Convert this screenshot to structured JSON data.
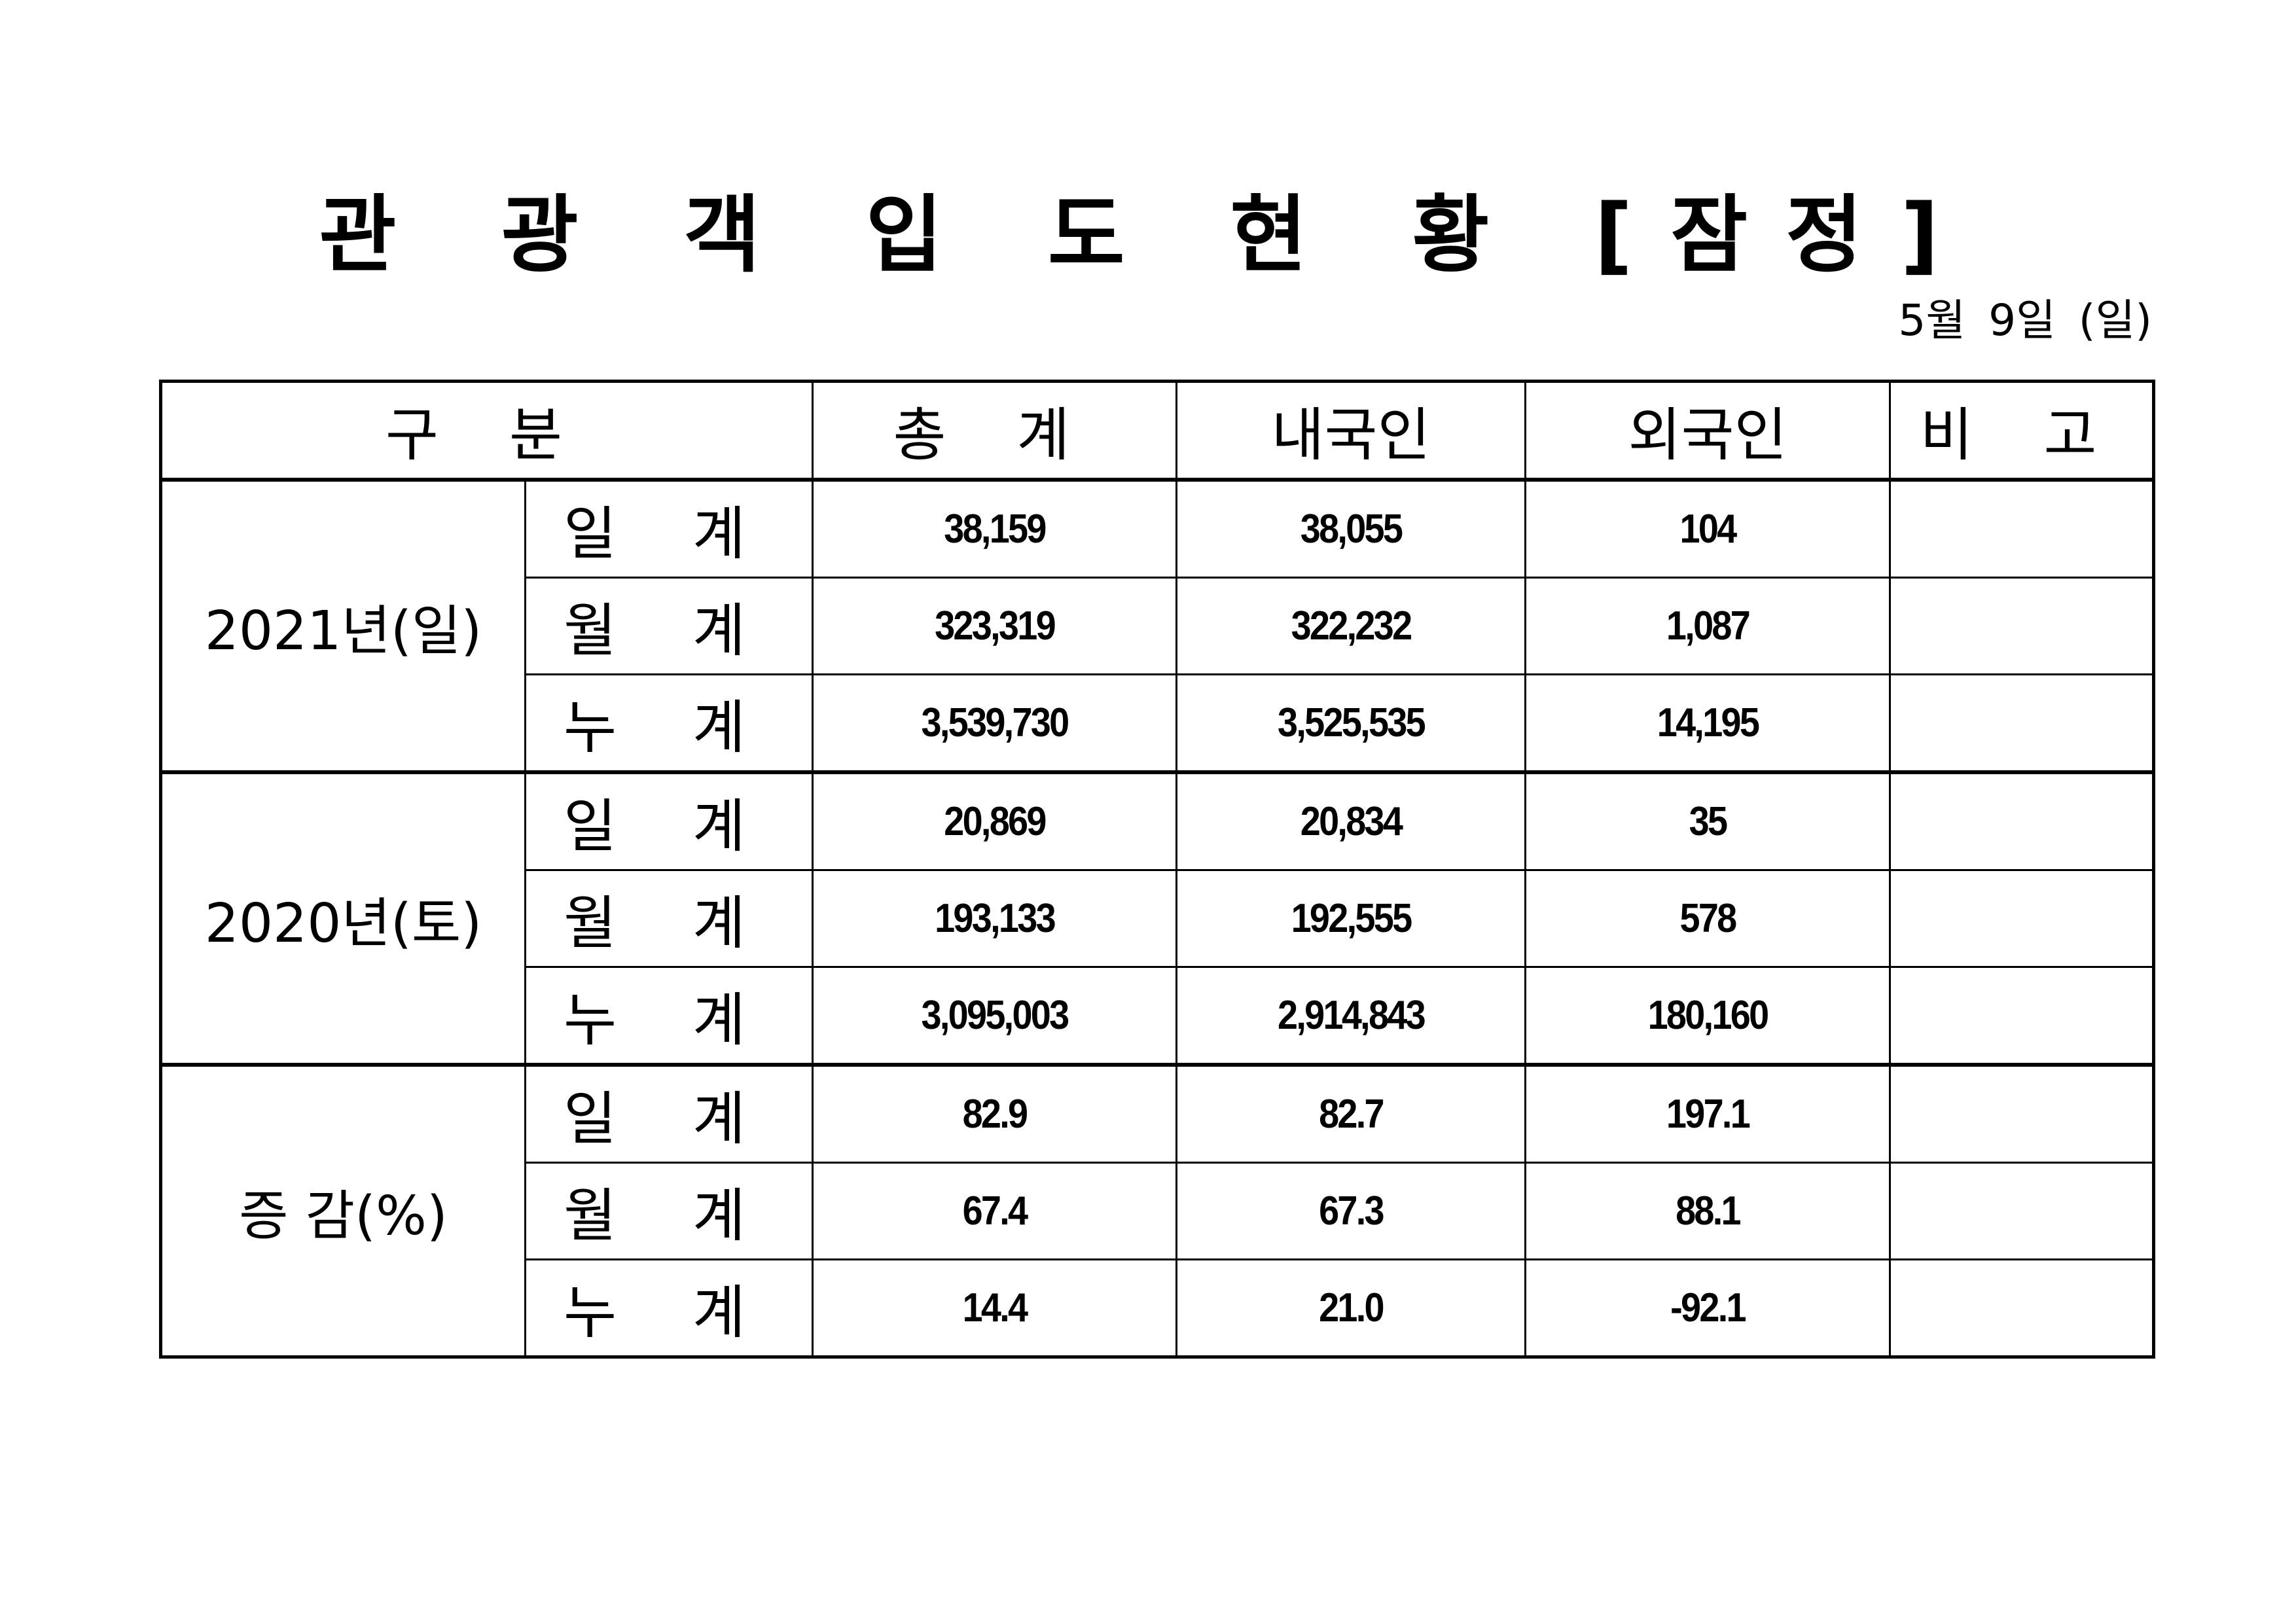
{
  "title": "관 광 객 입 도 현 황 [잠정]",
  "date": "5월 9일 (일)",
  "table": {
    "headers": [
      "구  분",
      "총  계",
      "내국인",
      "외국인",
      "비  고"
    ],
    "groups": [
      {
        "label": "2021년(일)",
        "rows": [
          {
            "sub": "일 계",
            "total": "38,159",
            "domestic": "38,055",
            "foreign": "104",
            "note": ""
          },
          {
            "sub": "월 계",
            "total": "323,319",
            "domestic": "322,232",
            "foreign": "1,087",
            "note": ""
          },
          {
            "sub": "누 계",
            "total": "3,539,730",
            "domestic": "3,525,535",
            "foreign": "14,195",
            "note": ""
          }
        ]
      },
      {
        "label": "2020년(토)",
        "rows": [
          {
            "sub": "일 계",
            "total": "20,869",
            "domestic": "20,834",
            "foreign": "35",
            "note": ""
          },
          {
            "sub": "월 계",
            "total": "193,133",
            "domestic": "192,555",
            "foreign": "578",
            "note": ""
          },
          {
            "sub": "누 계",
            "total": "3,095,003",
            "domestic": "2,914,843",
            "foreign": "180,160",
            "note": ""
          }
        ]
      },
      {
        "label": "증 감(%)",
        "rows": [
          {
            "sub": "일 계",
            "total": "82.9",
            "domestic": "82.7",
            "foreign": "197.1",
            "note": ""
          },
          {
            "sub": "월 계",
            "total": "67.4",
            "domestic": "67.3",
            "foreign": "88.1",
            "note": ""
          },
          {
            "sub": "누 계",
            "total": "14.4",
            "domestic": "21.0",
            "foreign": "-92.1",
            "note": ""
          }
        ]
      }
    ]
  }
}
